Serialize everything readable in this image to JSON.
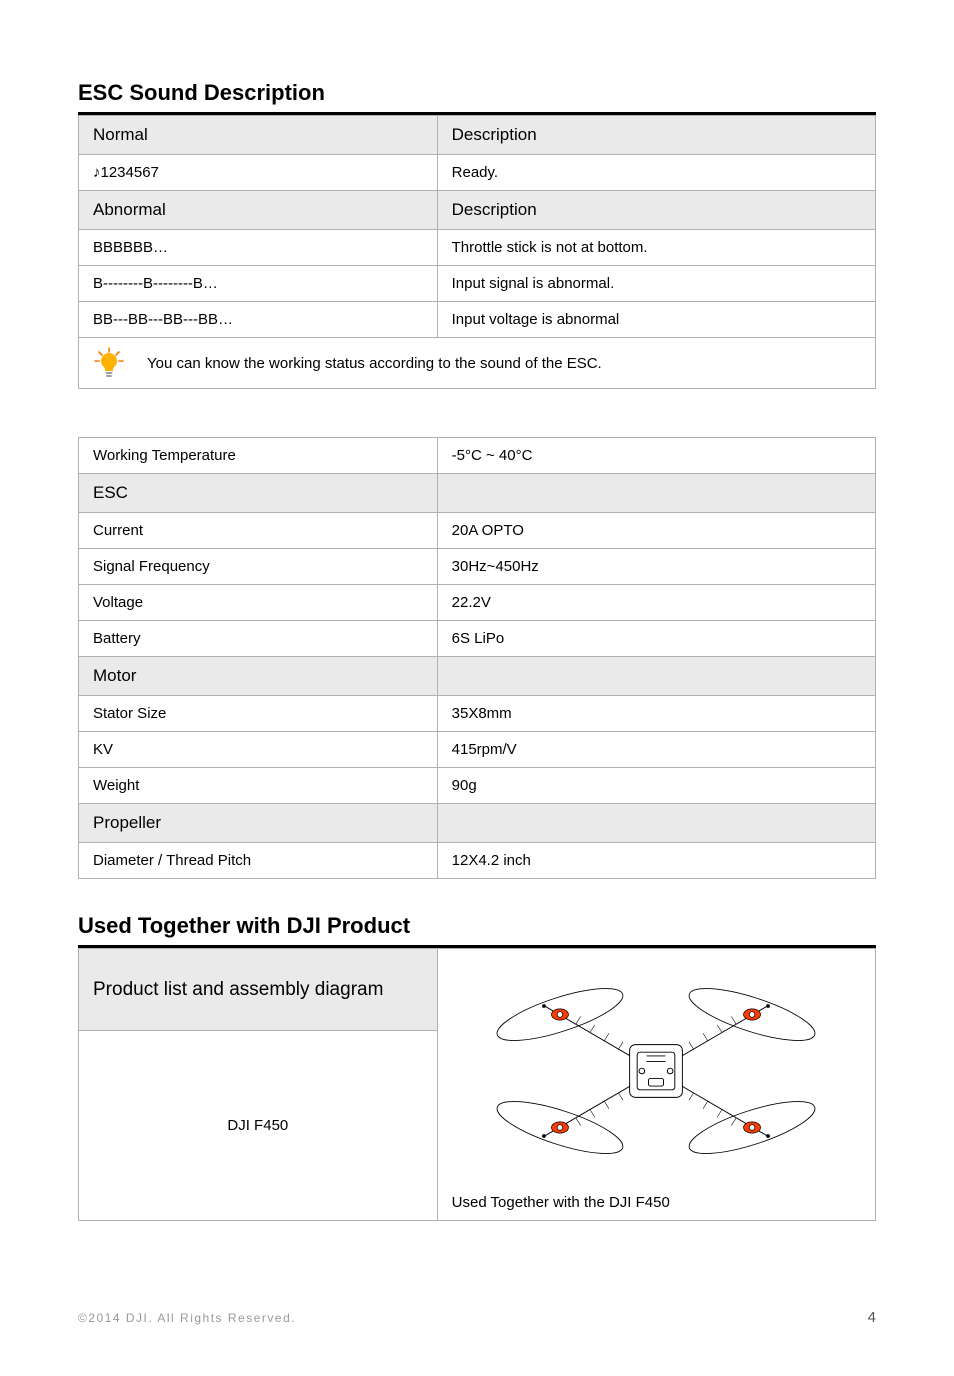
{
  "sections": {
    "esc_sound": {
      "title": "ESC Sound Description",
      "header_normal": "Normal",
      "header_desc": "Description",
      "normal_rows": [
        {
          "sound": "♪1234567",
          "desc": "Ready."
        }
      ],
      "header_abnormal": "Abnormal",
      "header_desc2": "Description",
      "abnormal_rows": [
        {
          "sound": "BBBBBB…",
          "desc": "Throttle stick is not at bottom."
        },
        {
          "sound": "B--------B--------B…",
          "desc": "Input signal is abnormal."
        },
        {
          "sound": "BB---BB---BB---BB…",
          "desc": "Input voltage is abnormal"
        }
      ],
      "note": "You can know the working status according to the sound of the ESC."
    },
    "specs": {
      "rows": [
        {
          "type": "row",
          "label": "Working Temperature",
          "value": "-5°C ~ 40°C"
        },
        {
          "type": "header",
          "label": "ESC",
          "value": ""
        },
        {
          "type": "row",
          "label": "Current",
          "value": "20A OPTO"
        },
        {
          "type": "row",
          "label": "Signal Frequency",
          "value": "30Hz~450Hz"
        },
        {
          "type": "row",
          "label": "Voltage",
          "value": "22.2V"
        },
        {
          "type": "row",
          "label": "Battery",
          "value": "6S LiPo"
        },
        {
          "type": "header",
          "label": "Motor",
          "value": ""
        },
        {
          "type": "row",
          "label": "Stator Size",
          "value": "35X8mm"
        },
        {
          "type": "row",
          "label": "KV",
          "value": "415rpm/V"
        },
        {
          "type": "row",
          "label": "Weight",
          "value": "90g"
        },
        {
          "type": "header",
          "label": "Propeller",
          "value": ""
        },
        {
          "type": "row",
          "label": "Diameter / Thread Pitch",
          "value": "12X4.2 inch"
        }
      ]
    },
    "used_together": {
      "title": "Used Together with DJI Product",
      "header": "Product list and assembly diagram",
      "product": "DJI F450",
      "caption": "Used Together with the DJI F450"
    }
  },
  "footer": {
    "copyright": "©2014 DJI. All Rights Reserved.",
    "page": "4"
  },
  "colors": {
    "border": "#b0b0b0",
    "header_bg": "#eaeaea",
    "bulb_fill": "#ffb300",
    "bulb_ray": "#f57c00",
    "motor_accent": "#ff3d00"
  }
}
